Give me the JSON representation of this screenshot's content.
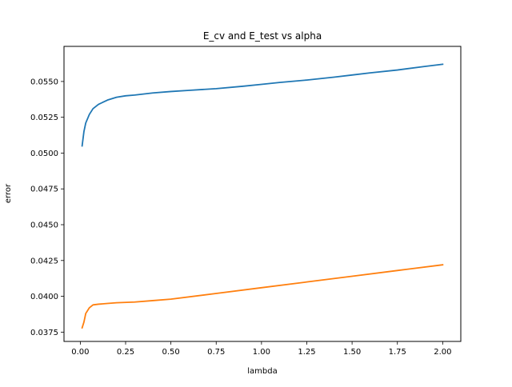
{
  "chart_data": {
    "type": "line",
    "title": "E_cv and E_test vs alpha",
    "xlabel": "lambda",
    "ylabel": "error",
    "xlim": [
      -0.09,
      2.1
    ],
    "ylim": [
      0.03685,
      0.05745
    ],
    "grid": false,
    "legend": "none",
    "xticks": [
      "0.00",
      "0.25",
      "0.50",
      "0.75",
      "1.00",
      "1.25",
      "1.50",
      "1.75",
      "2.00"
    ],
    "xtick_values": [
      0.0,
      0.25,
      0.5,
      0.75,
      1.0,
      1.25,
      1.5,
      1.75,
      2.0
    ],
    "yticks": [
      "0.0375",
      "0.0400",
      "0.0425",
      "0.0450",
      "0.0475",
      "0.0500",
      "0.0525",
      "0.0550"
    ],
    "ytick_values": [
      0.0375,
      0.04,
      0.0425,
      0.045,
      0.0475,
      0.05,
      0.0525,
      0.055
    ],
    "series": [
      {
        "color": "#1f77b4",
        "x": [
          0.01,
          0.02,
          0.03,
          0.05,
          0.07,
          0.1,
          0.15,
          0.2,
          0.25,
          0.3,
          0.4,
          0.5,
          0.6,
          0.75,
          0.9,
          1.0,
          1.1,
          1.25,
          1.4,
          1.5,
          1.6,
          1.75,
          1.9,
          2.0
        ],
        "y": [
          0.0505,
          0.0515,
          0.0521,
          0.0527,
          0.0531,
          0.0534,
          0.0537,
          0.0539,
          0.054,
          0.05405,
          0.0542,
          0.0543,
          0.05438,
          0.0545,
          0.05467,
          0.0548,
          0.05493,
          0.0551,
          0.0553,
          0.05545,
          0.0556,
          0.0558,
          0.05605,
          0.0562
        ]
      },
      {
        "color": "#ff7f0e",
        "x": [
          0.01,
          0.02,
          0.03,
          0.05,
          0.07,
          0.1,
          0.15,
          0.2,
          0.3,
          0.4,
          0.5,
          0.75,
          1.0,
          1.25,
          1.5,
          1.75,
          2.0
        ],
        "y": [
          0.0378,
          0.0382,
          0.0388,
          0.0392,
          0.0394,
          0.03945,
          0.0395,
          0.03955,
          0.0396,
          0.0397,
          0.0398,
          0.0402,
          0.0406,
          0.041,
          0.0414,
          0.0418,
          0.0422
        ]
      }
    ]
  }
}
